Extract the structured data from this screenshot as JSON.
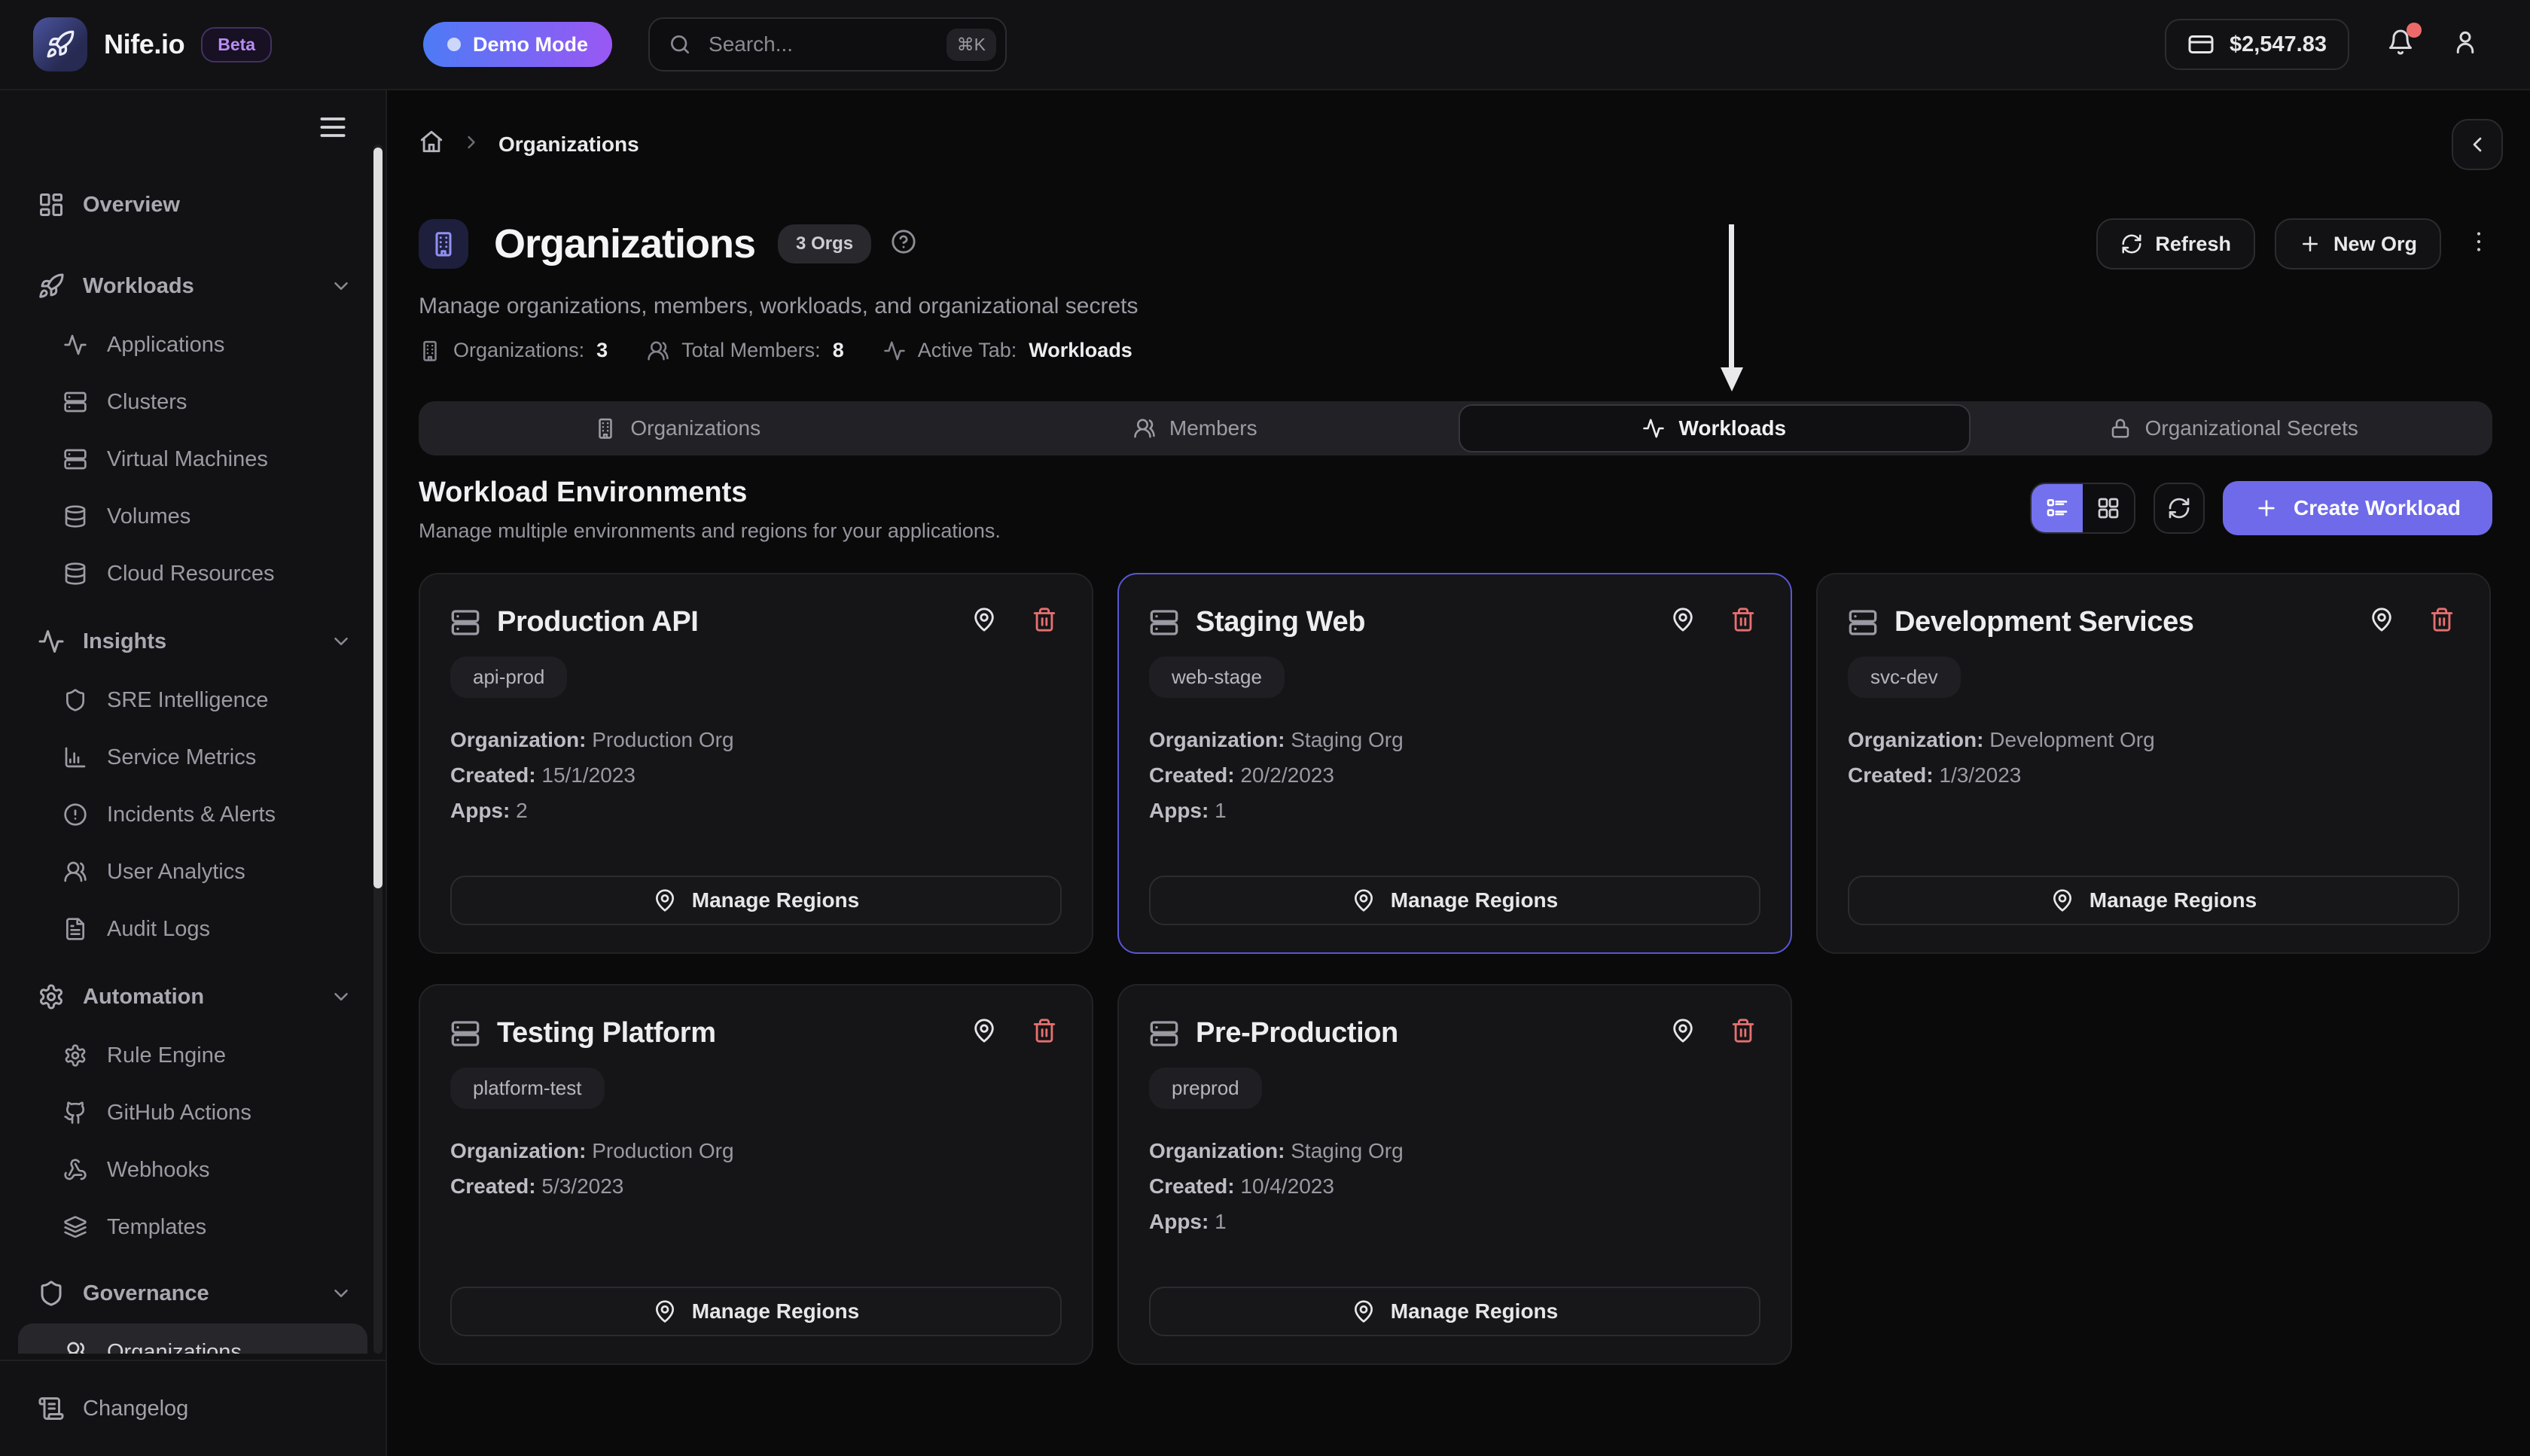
{
  "topbar": {
    "brand": "Nife.io",
    "beta_badge": "Beta",
    "demo_mode": "Demo Mode",
    "search_placeholder": "Search...",
    "search_shortcut": "⌘K",
    "balance": "$2,547.83"
  },
  "sidebar": {
    "items": [
      {
        "label": "Overview",
        "icon": "dashboard",
        "type": "top"
      },
      {
        "label": "Workloads",
        "icon": "rocket",
        "type": "top",
        "chevron": true,
        "gap": 14
      },
      {
        "label": "Applications",
        "icon": "activity",
        "type": "sub"
      },
      {
        "label": "Clusters",
        "icon": "server",
        "type": "sub"
      },
      {
        "label": "Virtual Machines",
        "icon": "server",
        "type": "sub"
      },
      {
        "label": "Volumes",
        "icon": "database",
        "type": "sub"
      },
      {
        "label": "Cloud Resources",
        "icon": "database",
        "type": "sub"
      },
      {
        "label": "Insights",
        "icon": "activity",
        "type": "top",
        "chevron": true,
        "gap": 6
      },
      {
        "label": "SRE Intelligence",
        "icon": "shield",
        "type": "sub"
      },
      {
        "label": "Service Metrics",
        "icon": "bar-chart",
        "type": "sub"
      },
      {
        "label": "Incidents & Alerts",
        "icon": "alert-circle",
        "type": "sub"
      },
      {
        "label": "User Analytics",
        "icon": "users",
        "type": "sub"
      },
      {
        "label": "Audit Logs",
        "icon": "file-text",
        "type": "sub"
      },
      {
        "label": "Automation",
        "icon": "settings",
        "type": "top",
        "chevron": true,
        "gap": 6
      },
      {
        "label": "Rule Engine",
        "icon": "settings",
        "type": "sub"
      },
      {
        "label": "GitHub Actions",
        "icon": "github",
        "type": "sub"
      },
      {
        "label": "Webhooks",
        "icon": "webhook",
        "type": "sub"
      },
      {
        "label": "Templates",
        "icon": "layers",
        "type": "sub"
      },
      {
        "label": "Governance",
        "icon": "shield",
        "type": "top",
        "chevron": true,
        "gap": 5
      },
      {
        "label": "Organizations",
        "icon": "users",
        "type": "sub",
        "highlighted": true
      }
    ],
    "changelog_label": "Changelog"
  },
  "breadcrumb": {
    "current": "Organizations"
  },
  "header": {
    "title": "Organizations",
    "count_badge": "3 Orgs",
    "subtitle": "Manage organizations, members, workloads, and organizational secrets",
    "stats": [
      {
        "icon": "building",
        "label": "Organizations:",
        "value": "3"
      },
      {
        "icon": "users",
        "label": "Total Members:",
        "value": "8"
      },
      {
        "icon": "activity",
        "label": "Active Tab:",
        "value": "Workloads"
      }
    ],
    "refresh_label": "Refresh",
    "new_org_label": "New Org"
  },
  "tabs": [
    {
      "label": "Organizations",
      "icon": "building",
      "active": false
    },
    {
      "label": "Members",
      "icon": "users",
      "active": false
    },
    {
      "label": "Workloads",
      "icon": "activity",
      "active": true
    },
    {
      "label": "Organizational Secrets",
      "icon": "lock",
      "active": false
    }
  ],
  "workloads": {
    "title": "Workload Environments",
    "subtitle": "Manage multiple environments and regions for your applications.",
    "create_label": "Create Workload",
    "cards": [
      {
        "title": "Production API",
        "tag": "api-prod",
        "highlighted": false,
        "action": "Manage Regions",
        "rows": [
          {
            "label": "Organization:",
            "value": "Production Org"
          },
          {
            "label": "Created:",
            "value": "15/1/2023"
          },
          {
            "label": "Apps:",
            "value": "2"
          }
        ]
      },
      {
        "title": "Staging Web",
        "tag": "web-stage",
        "highlighted": true,
        "action": "Manage Regions",
        "rows": [
          {
            "label": "Organization:",
            "value": "Staging Org"
          },
          {
            "label": "Created:",
            "value": "20/2/2023"
          },
          {
            "label": "Apps:",
            "value": "1"
          }
        ]
      },
      {
        "title": "Development Services",
        "tag": "svc-dev",
        "highlighted": false,
        "action": "Manage Regions",
        "rows": [
          {
            "label": "Organization:",
            "value": "Development Org"
          },
          {
            "label": "Created:",
            "value": "1/3/2023"
          }
        ]
      },
      {
        "title": "Testing Platform",
        "tag": "platform-test",
        "highlighted": false,
        "action": "Manage Regions",
        "rows": [
          {
            "label": "Organization:",
            "value": "Production Org"
          },
          {
            "label": "Created:",
            "value": "5/3/2023"
          }
        ]
      },
      {
        "title": "Pre-Production",
        "tag": "preprod",
        "highlighted": false,
        "action": "Manage Regions",
        "rows": [
          {
            "label": "Organization:",
            "value": "Staging Org"
          },
          {
            "label": "Created:",
            "value": "10/4/2023"
          },
          {
            "label": "Apps:",
            "value": "1"
          }
        ]
      }
    ]
  },
  "colors": {
    "accent": "#6e6ae9",
    "demo_gradient_start": "#4d7bf5",
    "demo_gradient_end": "#9a57f4",
    "danger": "#e77070",
    "highlight_border": "#5956d6",
    "notification_dot": "#ee6a6a"
  }
}
